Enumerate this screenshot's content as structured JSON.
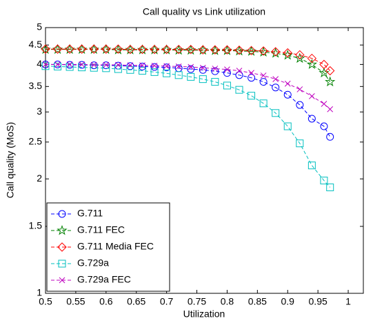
{
  "chart_data": {
    "type": "line",
    "title": "Call quality vs Link utilization",
    "x_label": "Utilization",
    "y_label": "Call quality (MoS)",
    "yscale": "log",
    "grid": false,
    "legend_position": "lower left",
    "xlim": [
      0.5,
      1.025
    ],
    "ylim": [
      1,
      5
    ],
    "xticks": [
      0.5,
      0.55,
      0.6,
      0.65,
      0.7,
      0.75,
      0.8,
      0.85,
      0.9,
      0.95,
      1
    ],
    "yticks": [
      1,
      1.5,
      2,
      2.5,
      3,
      3.5,
      4,
      4.5,
      5
    ],
    "x": [
      0.5,
      0.52,
      0.54,
      0.56,
      0.58,
      0.6,
      0.62,
      0.64,
      0.66,
      0.68,
      0.7,
      0.72,
      0.74,
      0.76,
      0.78,
      0.8,
      0.82,
      0.84,
      0.86,
      0.88,
      0.9,
      0.92,
      0.94,
      0.96,
      0.97
    ],
    "series": [
      {
        "name": "G.711",
        "color": "#0000ff",
        "marker": "circle",
        "values": [
          4.0,
          4.0,
          3.99,
          3.99,
          3.98,
          3.98,
          3.97,
          3.96,
          3.95,
          3.94,
          3.93,
          3.91,
          3.89,
          3.87,
          3.84,
          3.8,
          3.75,
          3.69,
          3.6,
          3.48,
          3.33,
          3.13,
          2.88,
          2.75,
          2.58
        ]
      },
      {
        "name": "G.711 FEC",
        "color": "#008000",
        "marker": "star",
        "values": [
          4.38,
          4.38,
          4.38,
          4.38,
          4.38,
          4.38,
          4.37,
          4.37,
          4.37,
          4.37,
          4.37,
          4.36,
          4.36,
          4.36,
          4.35,
          4.35,
          4.34,
          4.33,
          4.31,
          4.28,
          4.23,
          4.15,
          4.0,
          3.8,
          3.6
        ]
      },
      {
        "name": "G.711 Media FEC",
        "color": "#ff0000",
        "marker": "diamond",
        "values": [
          4.39,
          4.39,
          4.39,
          4.39,
          4.39,
          4.39,
          4.39,
          4.38,
          4.38,
          4.38,
          4.38,
          4.38,
          4.38,
          4.37,
          4.37,
          4.37,
          4.36,
          4.35,
          4.34,
          4.32,
          4.29,
          4.24,
          4.15,
          4.0,
          3.85
        ]
      },
      {
        "name": "G.729a",
        "color": "#00bfbf",
        "marker": "square",
        "values": [
          3.96,
          3.95,
          3.94,
          3.93,
          3.92,
          3.91,
          3.89,
          3.87,
          3.85,
          3.82,
          3.79,
          3.75,
          3.71,
          3.66,
          3.6,
          3.52,
          3.43,
          3.31,
          3.16,
          2.98,
          2.75,
          2.48,
          2.17,
          1.98,
          1.9
        ]
      },
      {
        "name": "G.729a FEC",
        "color": "#bf00bf",
        "marker": "x",
        "values": [
          4.0,
          4.0,
          4.0,
          4.0,
          3.99,
          3.99,
          3.99,
          3.98,
          3.98,
          3.97,
          3.96,
          3.95,
          3.94,
          3.92,
          3.9,
          3.88,
          3.85,
          3.8,
          3.74,
          3.66,
          3.56,
          3.44,
          3.3,
          3.15,
          3.05
        ]
      }
    ]
  }
}
